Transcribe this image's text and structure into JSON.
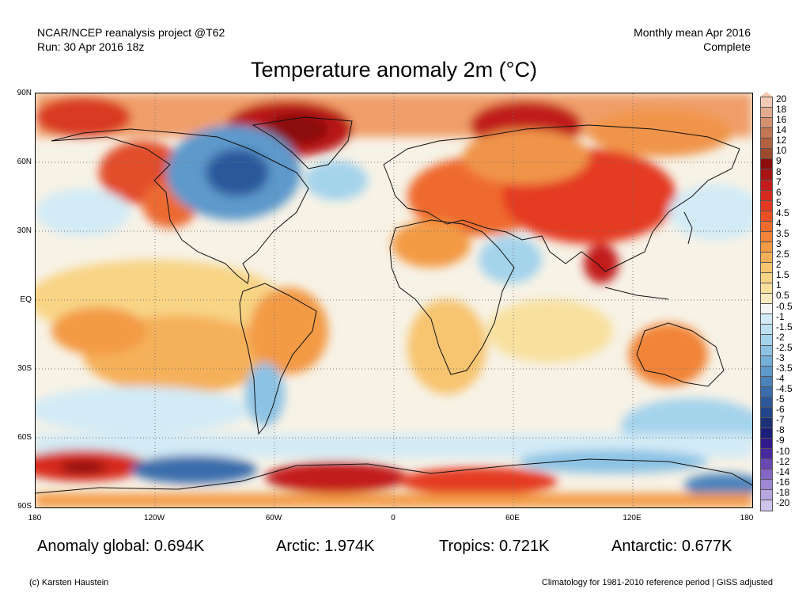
{
  "header": {
    "left_line1": "NCAR/NCEP reanalysis project @T62",
    "left_line2": "Run: 30 Apr 2016 18z",
    "right_line1": "Monthly mean Apr 2016",
    "right_line2": "Complete"
  },
  "title": "Temperature anomaly 2m (°C)",
  "axes": {
    "lat_labels": [
      "90N",
      "60N",
      "30N",
      "EQ",
      "30S",
      "60S",
      "90S"
    ],
    "lon_labels": [
      "180",
      "120W",
      "60W",
      "0",
      "60E",
      "120E",
      "180"
    ]
  },
  "colorbar": {
    "labels": [
      "20",
      "18",
      "16",
      "14",
      "12",
      "10",
      "9",
      "8",
      "7",
      "6",
      "5",
      "4.5",
      "4",
      "3.5",
      "3",
      "2.5",
      "2",
      "1.5",
      "1",
      "0.5",
      "-0.5",
      "-1",
      "-1.5",
      "-2",
      "-2.5",
      "-3",
      "-3.5",
      "-4",
      "-4.5",
      "-5",
      "-6",
      "-7",
      "-8",
      "-9",
      "-10",
      "-12",
      "-14",
      "-16",
      "-18",
      "-20"
    ],
    "colors": [
      "#f2c9b4",
      "#e3aa8e",
      "#d4906f",
      "#c37654",
      "#b2603f",
      "#9c4a2c",
      "#8c0d0d",
      "#a81414",
      "#c21c1c",
      "#d72a1f",
      "#e43a22",
      "#eb5025",
      "#ef6b2d",
      "#f18438",
      "#f39a45",
      "#f5b05a",
      "#f7c46f",
      "#f8d485",
      "#f8e09e",
      "#f9ebbd",
      "#f4f4f4",
      "#d3ebf6",
      "#bde1f2",
      "#a4d3ec",
      "#8cc2e4",
      "#74afd9",
      "#5d99cb",
      "#4a83bc",
      "#3a6dac",
      "#2c589b",
      "#22448a",
      "#1c317a",
      "#1c1f7a",
      "#301a8c",
      "#48289d",
      "#6a48b4",
      "#8466c6",
      "#9d86d4",
      "#b7a6e0",
      "#cdc3ec"
    ]
  },
  "stats": {
    "global": "Anomaly global: 0.694K",
    "arctic": "Arctic: 1.974K",
    "tropics": "Tropics: 0.721K",
    "antarctic": "Antarctic: 0.677K"
  },
  "footer": {
    "credit": "(c) Karsten Haustein",
    "note": "Climatology for 1981-2010 reference period | GISS adjusted"
  }
}
